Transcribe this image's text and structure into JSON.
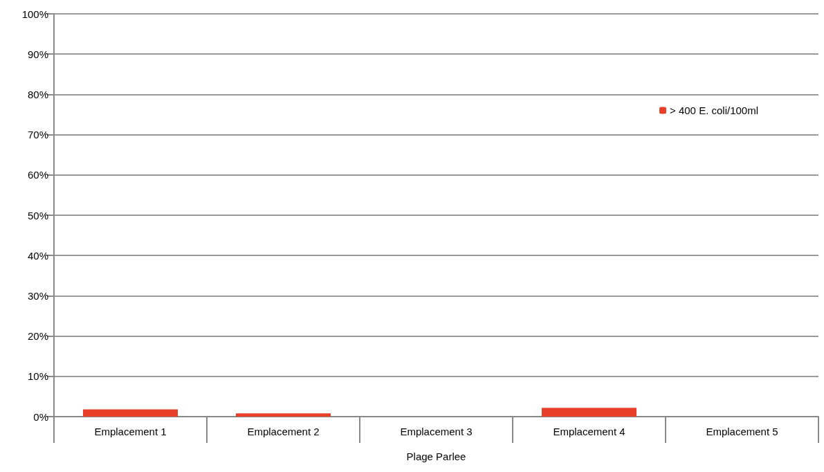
{
  "chart_data": {
    "type": "bar",
    "categories": [
      "Emplacement 1",
      "Emplacement 2",
      "Emplacement 3",
      "Emplacement 4",
      "Emplacement 5"
    ],
    "series": [
      {
        "name": "> 400 E. coli/100ml",
        "color": "#e8402a",
        "values": [
          1.8,
          0.8,
          0,
          2.2,
          0
        ]
      }
    ],
    "xlabel": "Plage Parlee",
    "ylim": [
      0,
      100
    ],
    "yticks": [
      {
        "value": 0,
        "label": "0%"
      },
      {
        "value": 10,
        "label": "10%"
      },
      {
        "value": 20,
        "label": "20%"
      },
      {
        "value": 30,
        "label": "30%"
      },
      {
        "value": 40,
        "label": "40%"
      },
      {
        "value": 50,
        "label": "50%"
      },
      {
        "value": 60,
        "label": "60%"
      },
      {
        "value": 70,
        "label": "70%"
      },
      {
        "value": 80,
        "label": "80%"
      },
      {
        "value": 90,
        "label": "90%"
      },
      {
        "value": 100,
        "label": "100%"
      }
    ],
    "grid": "y",
    "legend": "top right"
  }
}
